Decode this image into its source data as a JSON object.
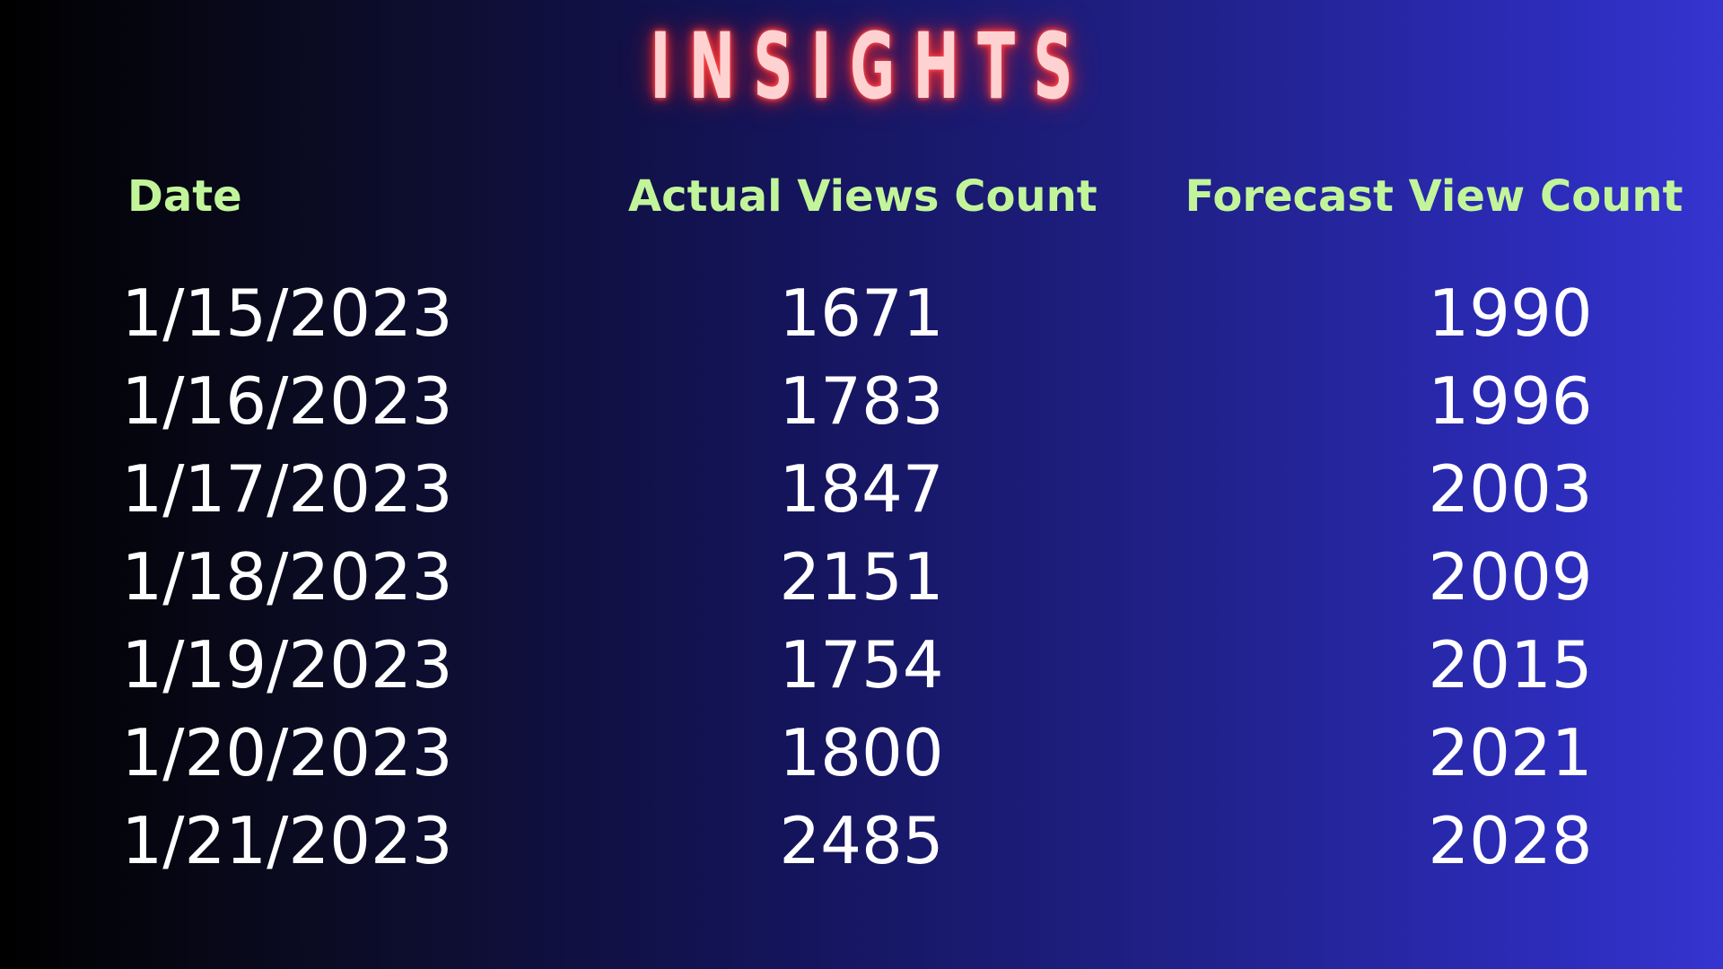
{
  "title": "INSIGHTS",
  "colors": {
    "title_glow": "#ff3030",
    "header_text": "#c2f59a",
    "cell_text": "#ffffff",
    "background_left": "#000000",
    "background_right": "#3535d0"
  },
  "chart_data": {
    "type": "table",
    "title": "INSIGHTS",
    "columns": [
      "Date",
      "Actual Views Count",
      "Forecast View Count"
    ],
    "rows": [
      {
        "date": "1/15/2023",
        "actual": "1671",
        "forecast": "1990"
      },
      {
        "date": "1/16/2023",
        "actual": "1783",
        "forecast": "1996"
      },
      {
        "date": "1/17/2023",
        "actual": "1847",
        "forecast": "2003"
      },
      {
        "date": "1/18/2023",
        "actual": "2151",
        "forecast": "2009"
      },
      {
        "date": "1/19/2023",
        "actual": "1754",
        "forecast": "2015"
      },
      {
        "date": "1/20/2023",
        "actual": "1800",
        "forecast": "2021"
      },
      {
        "date": "1/21/2023",
        "actual": "2485",
        "forecast": "2028"
      }
    ]
  }
}
